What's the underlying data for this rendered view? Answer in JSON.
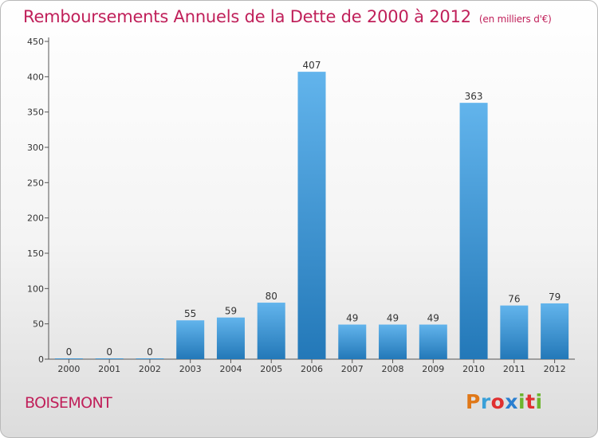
{
  "title": "Remboursements Annuels de la Dette de 2000 à 2012",
  "subtitle": "(en milliers d'€)",
  "commune": "BOISEMONT",
  "logo": "Proxiti",
  "colors": {
    "title": "#c0205a",
    "bar_top": "#62b4ec",
    "bar_bottom": "#2378b8"
  },
  "chart_data": {
    "type": "bar",
    "title": "Remboursements Annuels de la Dette de 2000 à 2012",
    "subtitle": "(en milliers d'€)",
    "categories": [
      "2000",
      "2001",
      "2002",
      "2003",
      "2004",
      "2005",
      "2006",
      "2007",
      "2008",
      "2009",
      "2010",
      "2011",
      "2012"
    ],
    "values": [
      0,
      0,
      0,
      55,
      59,
      80,
      407,
      49,
      49,
      49,
      363,
      76,
      79
    ],
    "data_labels": [
      "0",
      "0",
      "0",
      "55",
      "59",
      "80",
      "407",
      "49",
      "49",
      "49",
      "363",
      "76",
      "79"
    ],
    "ylim": [
      0,
      450
    ],
    "yticks": [
      0,
      50,
      100,
      150,
      200,
      250,
      300,
      350,
      400,
      450
    ],
    "grid": false,
    "legend": "none"
  }
}
